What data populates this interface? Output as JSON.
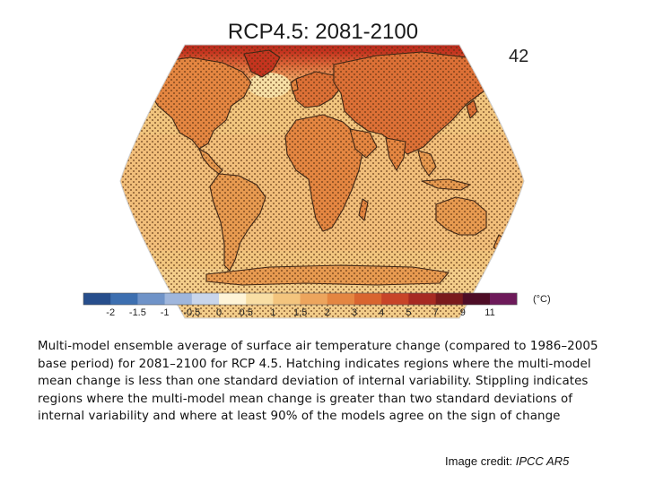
{
  "title": "RCP4.5: 2081-2100",
  "model_count": "42",
  "map": {
    "projection": "Robinson",
    "overlays": [
      "hatching",
      "stippling"
    ],
    "colors": {
      "ocean_base": "#f1c57e",
      "land_warm": "#e79a50",
      "land_hot": "#d9652f",
      "arctic": "#c5341f",
      "arctic_deep": "#a5211c",
      "greenland_atlantic": "#f6dfa5",
      "coast": "#3a2415",
      "stipple": "#5b3010"
    }
  },
  "colorbar": {
    "unit": "(°C)",
    "colors": [
      "#274e8c",
      "#3d6fb0",
      "#6f93c8",
      "#9fb6dc",
      "#c9d6ec",
      "#fff5d8",
      "#f9dfa5",
      "#f4c57e",
      "#eda55d",
      "#e48641",
      "#d9652f",
      "#c84428",
      "#a72a22",
      "#7a1a1c",
      "#4e0d26",
      "#6d1a5a"
    ],
    "tick_labels": [
      "-2",
      "-1.5",
      "-1",
      "-0.5",
      "0",
      "0.5",
      "1",
      "1.5",
      "2",
      "3",
      "4",
      "5",
      "7",
      "9",
      "11"
    ]
  },
  "caption": "Multi-model ensemble average of surface air temperature change (compared to 1986–2005 base period) for 2081–2100 for RCP 4.5. Hatching indicates regions where the multi-model mean change is less than one standard deviation of internal variability. Stippling indicates regions where the multi-model mean change is greater than two standard deviations of internal variability and where at least 90% of the models agree on the sign of change",
  "credit": {
    "prefix": "Image credit: ",
    "source": "IPCC AR5"
  }
}
